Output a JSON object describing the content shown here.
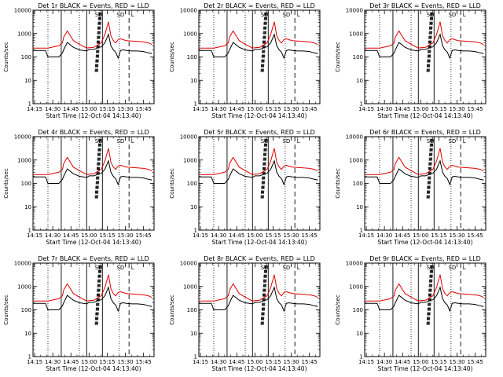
{
  "chart_data": {
    "type": "line",
    "layout": "3x3 grid of log-scale time-series panels",
    "yscale": "log",
    "ylim": [
      1,
      10000
    ],
    "ytick_labels": [
      "1",
      "10",
      "100",
      "1000",
      "10000"
    ],
    "ylabel": "Counts/sec",
    "xlabel": "Start Time (12-Oct-04 14:13:40)",
    "xlim": [
      "14:13:40",
      "15:53:40"
    ],
    "xtick_labels": [
      "14:15",
      "14:30",
      "14:45",
      "15:00",
      "15:15",
      "15:30",
      "15:45"
    ],
    "series_colors": {
      "events": "#000000",
      "lld": "#e00000"
    },
    "event_markers": {
      "dotted": [
        "14:26",
        "14:52",
        "15:25"
      ],
      "solid": [
        "14:37",
        "14:58",
        "15:11"
      ],
      "dashed": [
        "15:33"
      ]
    },
    "marker_labels": [
      "SD",
      "SD",
      "L"
    ],
    "time_points": [
      "14:14",
      "14:24",
      "14:26",
      "14:35",
      "14:38",
      "14:39",
      "14:42",
      "14:47",
      "14:52",
      "14:58",
      "15:00",
      "15:04",
      "15:06",
      "15:08",
      "15:10",
      "15:13",
      "15:16",
      "15:18",
      "15:20",
      "15:22",
      "15:24",
      "15:26",
      "15:28",
      "15:31",
      "15:35",
      "15:40",
      "15:45",
      "15:49",
      "15:52"
    ],
    "panels": [
      {
        "title": "Det 1r BLACK = Events, RED = LLD",
        "saa_pass": [
          "15:05",
          "15:07"
        ],
        "series": [
          {
            "values": [
              190,
              190,
              100,
              100,
              150,
              200,
              420,
              260,
              200,
              180,
              210,
              210,
              230,
              260,
              270,
              400,
              920,
              300,
              200,
              160,
              90,
              190,
              200,
              190,
              180,
              180,
              170,
              150,
              140
            ]
          },
          {
            "values": [
              240,
              240,
              240,
              300,
              400,
              700,
              1300,
              500,
              350,
              240,
              250,
              260,
              300,
              350,
              400,
              900,
              3200,
              800,
              500,
              400,
              550,
              600,
              550,
              500,
              480,
              460,
              440,
              400,
              340
            ]
          }
        ]
      },
      {
        "title": "Det 2r BLACK = Events, RED = LLD",
        "saa_pass": [
          "15:05",
          "15:07"
        ],
        "series": [
          {
            "values": [
              190,
              190,
              100,
              100,
              150,
              200,
              420,
              260,
              200,
              180,
              210,
              210,
              230,
              260,
              270,
              400,
              920,
              300,
              200,
              160,
              90,
              190,
              200,
              190,
              180,
              180,
              170,
              150,
              140
            ]
          },
          {
            "values": [
              240,
              240,
              240,
              300,
              400,
              700,
              1300,
              500,
              350,
              240,
              250,
              260,
              300,
              350,
              400,
              900,
              3200,
              800,
              500,
              400,
              550,
              600,
              550,
              500,
              480,
              460,
              440,
              400,
              340
            ]
          }
        ]
      },
      {
        "title": "Det 3r BLACK = Events, RED = LLD",
        "saa_pass": [
          "15:05",
          "15:07"
        ],
        "series": [
          {
            "values": [
              190,
              190,
              100,
              100,
              150,
              200,
              420,
              260,
              200,
              180,
              210,
              210,
              230,
              260,
              270,
              400,
              920,
              300,
              200,
              160,
              90,
              190,
              200,
              190,
              180,
              180,
              170,
              150,
              140
            ]
          },
          {
            "values": [
              240,
              240,
              240,
              300,
              400,
              700,
              1300,
              500,
              350,
              240,
              250,
              260,
              300,
              350,
              400,
              900,
              3200,
              800,
              500,
              400,
              550,
              600,
              550,
              500,
              480,
              460,
              440,
              400,
              340
            ]
          }
        ]
      },
      {
        "title": "Det 4r BLACK = Events, RED = LLD",
        "saa_pass": [
          "15:05",
          "15:07"
        ],
        "series": [
          {
            "values": [
              190,
              190,
              100,
              100,
              150,
              200,
              420,
              260,
              200,
              180,
              210,
              210,
              230,
              260,
              270,
              400,
              920,
              300,
              200,
              160,
              90,
              190,
              200,
              190,
              180,
              180,
              170,
              150,
              140
            ]
          },
          {
            "values": [
              240,
              240,
              240,
              300,
              400,
              700,
              1300,
              500,
              350,
              240,
              250,
              260,
              300,
              350,
              400,
              900,
              3200,
              800,
              500,
              400,
              550,
              600,
              550,
              500,
              480,
              460,
              440,
              400,
              340
            ]
          }
        ]
      },
      {
        "title": "Det 5r BLACK = Events, RED = LLD",
        "saa_pass": [
          "15:05",
          "15:07"
        ],
        "series": [
          {
            "values": [
              190,
              190,
              100,
              100,
              150,
              200,
              420,
              260,
              200,
              180,
              210,
              210,
              230,
              260,
              270,
              400,
              920,
              300,
              200,
              160,
              90,
              190,
              200,
              190,
              180,
              180,
              170,
              150,
              140
            ]
          },
          {
            "values": [
              240,
              240,
              240,
              300,
              400,
              700,
              1300,
              500,
              350,
              240,
              250,
              260,
              300,
              350,
              400,
              900,
              3200,
              800,
              500,
              400,
              550,
              600,
              550,
              500,
              480,
              460,
              440,
              400,
              340
            ]
          }
        ]
      },
      {
        "title": "Det 6r BLACK = Events, RED = LLD",
        "saa_pass": [
          "15:05",
          "15:07"
        ],
        "series": [
          {
            "values": [
              190,
              190,
              100,
              100,
              150,
              200,
              420,
              260,
              200,
              180,
              210,
              210,
              230,
              260,
              270,
              400,
              920,
              300,
              200,
              160,
              90,
              190,
              200,
              190,
              180,
              180,
              170,
              150,
              140
            ]
          },
          {
            "values": [
              240,
              240,
              240,
              300,
              400,
              700,
              1300,
              500,
              350,
              240,
              250,
              260,
              300,
              350,
              400,
              900,
              3200,
              800,
              500,
              400,
              550,
              600,
              550,
              500,
              480,
              460,
              440,
              400,
              340
            ]
          }
        ]
      },
      {
        "title": "Det 7r BLACK = Events, RED = LLD",
        "saa_pass": [
          "15:05",
          "15:07"
        ],
        "series": [
          {
            "values": [
              190,
              190,
              100,
              100,
              150,
              200,
              420,
              260,
              200,
              180,
              210,
              210,
              230,
              260,
              270,
              400,
              920,
              300,
              200,
              160,
              90,
              190,
              200,
              190,
              180,
              180,
              170,
              150,
              140
            ]
          },
          {
            "values": [
              240,
              240,
              240,
              300,
              400,
              700,
              1300,
              500,
              350,
              240,
              250,
              260,
              300,
              350,
              400,
              900,
              3200,
              800,
              500,
              400,
              550,
              600,
              550,
              500,
              480,
              460,
              440,
              400,
              340
            ]
          }
        ]
      },
      {
        "title": "Det 8r BLACK = Events, RED = LLD",
        "saa_pass": [
          "15:05",
          "15:07"
        ],
        "series": [
          {
            "values": [
              190,
              190,
              100,
              100,
              150,
              200,
              420,
              260,
              200,
              180,
              210,
              210,
              230,
              260,
              270,
              400,
              920,
              300,
              200,
              160,
              90,
              190,
              200,
              190,
              180,
              180,
              170,
              150,
              140
            ]
          },
          {
            "values": [
              240,
              240,
              240,
              300,
              400,
              700,
              1300,
              500,
              350,
              240,
              250,
              260,
              300,
              350,
              400,
              900,
              3200,
              800,
              500,
              400,
              550,
              600,
              550,
              500,
              480,
              460,
              440,
              400,
              340
            ]
          }
        ]
      },
      {
        "title": "Det 9r BLACK = Events, RED = LLD",
        "saa_pass": [
          "15:05",
          "15:07"
        ],
        "series": [
          {
            "values": [
              190,
              190,
              100,
              100,
              150,
              200,
              420,
              260,
              200,
              180,
              210,
              210,
              230,
              260,
              270,
              400,
              920,
              300,
              200,
              160,
              90,
              190,
              200,
              190,
              180,
              180,
              170,
              150,
              140
            ]
          },
          {
            "values": [
              240,
              240,
              240,
              300,
              400,
              700,
              1300,
              500,
              350,
              240,
              250,
              260,
              300,
              350,
              400,
              900,
              3200,
              800,
              500,
              400,
              550,
              600,
              550,
              500,
              480,
              460,
              440,
              400,
              340
            ]
          }
        ]
      }
    ]
  }
}
